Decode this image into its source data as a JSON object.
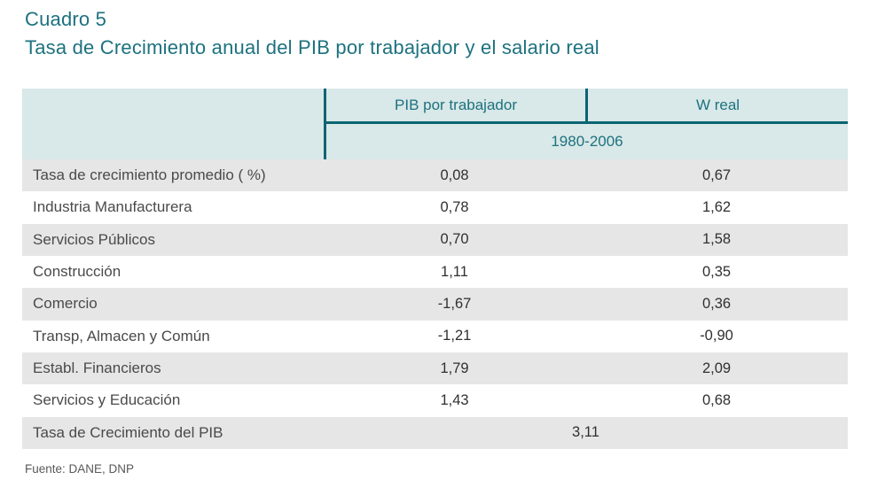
{
  "header": {
    "cuadro": "Cuadro 5",
    "title": "Tasa de Crecimiento anual del PIB por trabajador y el salario real"
  },
  "table": {
    "columns": [
      "PIB por trabajador",
      "W real"
    ],
    "period": "1980-2006",
    "rows": [
      {
        "label": "Tasa de crecimiento promedio ( %)",
        "pib": "0,08",
        "w": "0,67"
      },
      {
        "label": "Industria Manufacturera",
        "pib": "0,78",
        "w": "1,62"
      },
      {
        "label": "Servicios Públicos",
        "pib": "0,70",
        "w": "1,58"
      },
      {
        "label": "Construcción",
        "pib": "1,11",
        "w": "0,35"
      },
      {
        "label": "Comercio",
        "pib": "-1,67",
        "w": "0,36"
      },
      {
        "label": "Transp, Almacen y Común",
        "pib": "-1,21",
        "w": "-0,90"
      },
      {
        "label": "Establ. Financieros",
        "pib": "1,79",
        "w": "2,09"
      },
      {
        "label": "Servicios y Educación",
        "pib": "1,43",
        "w": "0,68"
      }
    ],
    "total_row": {
      "label": "Tasa de Crecimiento del PIB",
      "value": "3,11"
    }
  },
  "source": "Fuente: DANE, DNP",
  "colors": {
    "accent": "#1d727f",
    "line": "#0b6472",
    "header-bg": "#d9e8e8",
    "alt-bg": "#e6e6e6"
  }
}
